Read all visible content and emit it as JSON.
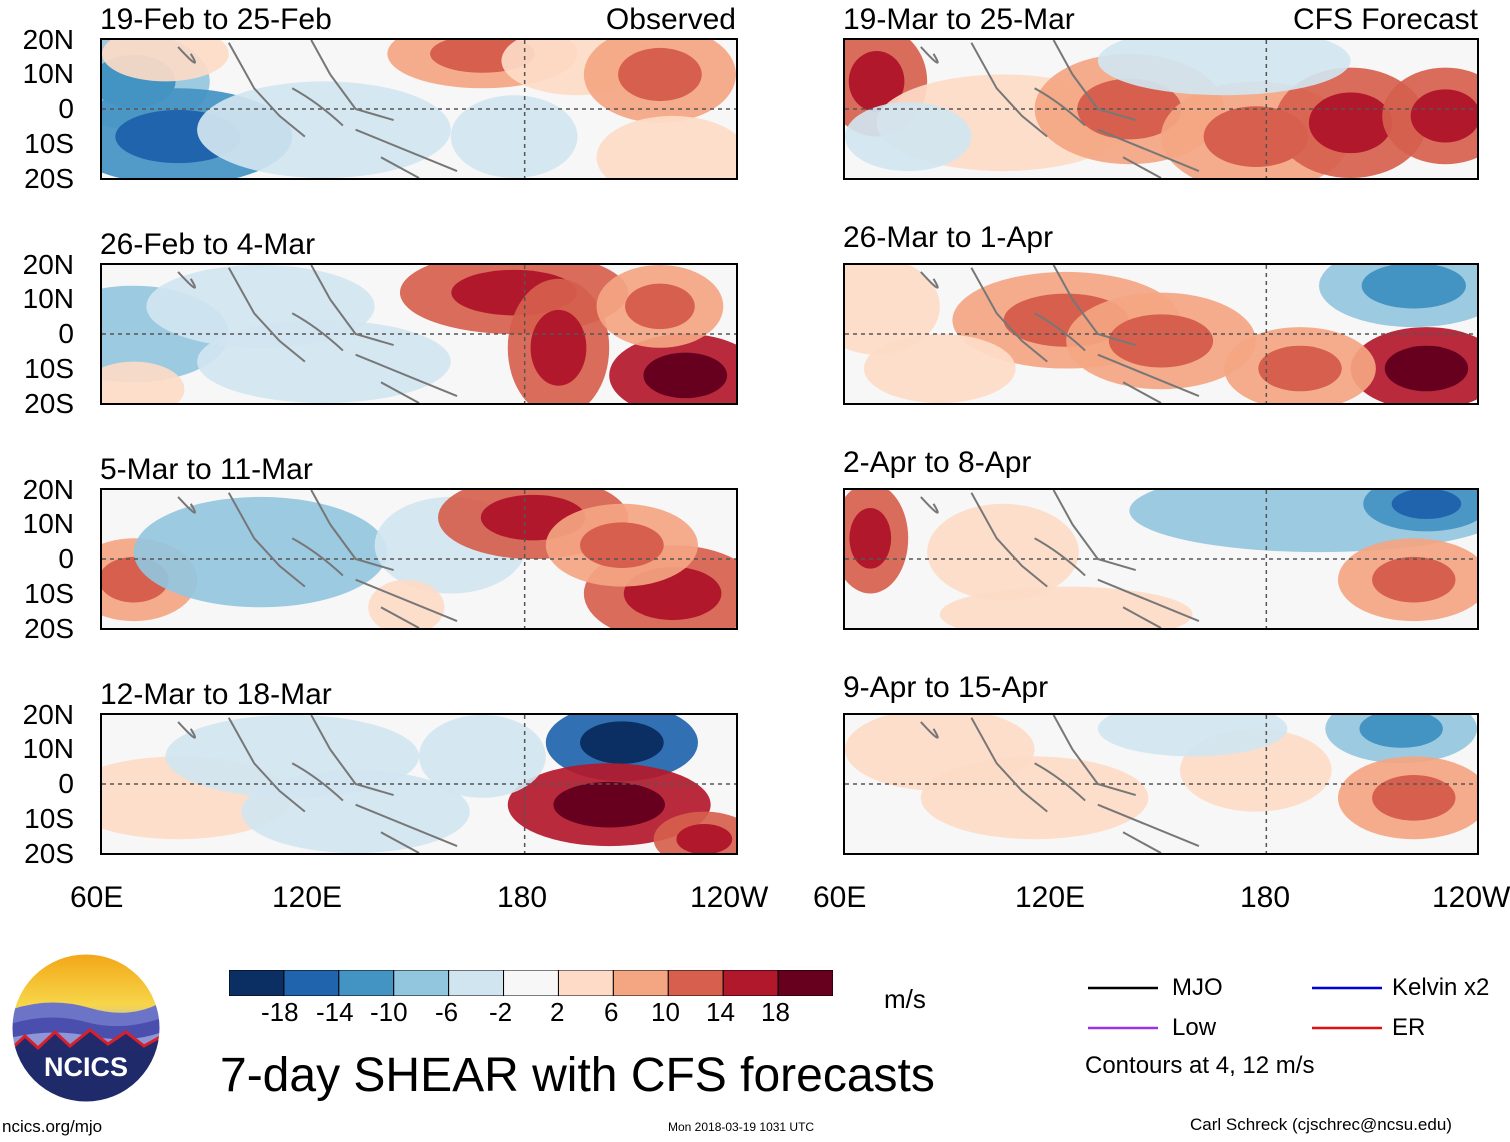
{
  "chart_data": {
    "type": "heatmap",
    "title": "7-day SHEAR with CFS forecasts",
    "units": "m/s",
    "contour_note": "Contours at 4, 12 m/s",
    "lat_ticks": [
      "20N",
      "10N",
      "0",
      "10S",
      "20S"
    ],
    "lon_ticks": [
      "60E",
      "120E",
      "180",
      "120W"
    ],
    "lat_range": [
      -20,
      20
    ],
    "lon_range": [
      60,
      240
    ],
    "colorbar": {
      "ticks": [
        -18,
        -14,
        -10,
        -6,
        -2,
        2,
        6,
        10,
        14,
        18
      ],
      "colors": [
        "#0b2f63",
        "#1f64ad",
        "#4393c3",
        "#92c5de",
        "#d1e5f0",
        "#f7f7f7",
        "#fddbc7",
        "#f4a582",
        "#d6604d",
        "#b2182b",
        "#67001f"
      ]
    },
    "legend": [
      {
        "label": "MJO",
        "color": "#000000"
      },
      {
        "label": "Kelvin x2",
        "color": "#0000dd"
      },
      {
        "label": "Low",
        "color": "#9a32e6"
      },
      {
        "label": "ER",
        "color": "#e01010"
      }
    ],
    "observed_label": "Observed",
    "forecast_label": "CFS Forecast",
    "panels": [
      {
        "title": "19-Feb to 25-Feb",
        "group": "observed",
        "blobs": [
          [
            0.05,
            0.3,
            0.12,
            0.35,
            -8
          ],
          [
            0.12,
            0.7,
            0.18,
            0.35,
            -10
          ],
          [
            0.35,
            0.65,
            0.2,
            0.35,
            -4
          ],
          [
            0.6,
            0.1,
            0.15,
            0.25,
            8
          ],
          [
            0.75,
            0.15,
            0.12,
            0.25,
            6
          ],
          [
            0.88,
            0.25,
            0.12,
            0.35,
            8
          ],
          [
            0.1,
            0.1,
            0.1,
            0.2,
            6
          ],
          [
            0.65,
            0.7,
            0.1,
            0.3,
            -4
          ],
          [
            0.9,
            0.85,
            0.12,
            0.3,
            4
          ]
        ]
      },
      {
        "title": "26-Feb to 4-Mar",
        "group": "observed",
        "blobs": [
          [
            0.05,
            0.5,
            0.15,
            0.35,
            -6
          ],
          [
            0.25,
            0.3,
            0.18,
            0.3,
            -5
          ],
          [
            0.35,
            0.7,
            0.2,
            0.3,
            -4
          ],
          [
            0.65,
            0.2,
            0.18,
            0.3,
            12
          ],
          [
            0.72,
            0.6,
            0.08,
            0.5,
            12
          ],
          [
            0.92,
            0.8,
            0.12,
            0.3,
            16
          ],
          [
            0.88,
            0.3,
            0.1,
            0.3,
            8
          ],
          [
            0.05,
            0.9,
            0.08,
            0.2,
            6
          ]
        ]
      },
      {
        "title": "5-Mar to 11-Mar",
        "group": "observed",
        "blobs": [
          [
            0.05,
            0.65,
            0.1,
            0.3,
            8
          ],
          [
            0.25,
            0.45,
            0.2,
            0.4,
            -6
          ],
          [
            0.55,
            0.4,
            0.12,
            0.35,
            -4
          ],
          [
            0.68,
            0.2,
            0.15,
            0.3,
            14
          ],
          [
            0.9,
            0.75,
            0.14,
            0.35,
            14
          ],
          [
            0.82,
            0.4,
            0.12,
            0.3,
            8
          ],
          [
            0.48,
            0.85,
            0.06,
            0.2,
            6
          ]
        ]
      },
      {
        "title": "12-Mar to 18-Mar",
        "group": "observed",
        "blobs": [
          [
            0.12,
            0.6,
            0.18,
            0.3,
            4
          ],
          [
            0.3,
            0.3,
            0.2,
            0.3,
            -4
          ],
          [
            0.4,
            0.7,
            0.18,
            0.3,
            -3
          ],
          [
            0.82,
            0.2,
            0.12,
            0.28,
            -16
          ],
          [
            0.8,
            0.65,
            0.16,
            0.3,
            16
          ],
          [
            0.95,
            0.9,
            0.08,
            0.2,
            14
          ],
          [
            0.6,
            0.3,
            0.1,
            0.3,
            -4
          ]
        ]
      },
      {
        "title": "19-Mar to 25-Mar",
        "group": "forecast",
        "blobs": [
          [
            0.05,
            0.3,
            0.08,
            0.4,
            12
          ],
          [
            0.25,
            0.6,
            0.2,
            0.35,
            6
          ],
          [
            0.45,
            0.5,
            0.15,
            0.4,
            8
          ],
          [
            0.65,
            0.7,
            0.15,
            0.4,
            10
          ],
          [
            0.8,
            0.6,
            0.12,
            0.4,
            12
          ],
          [
            0.95,
            0.55,
            0.1,
            0.35,
            14
          ],
          [
            0.6,
            0.15,
            0.2,
            0.25,
            -4
          ],
          [
            0.1,
            0.7,
            0.1,
            0.25,
            -4
          ]
        ]
      },
      {
        "title": "26-Mar to 1-Apr",
        "group": "forecast",
        "blobs": [
          [
            0.05,
            0.3,
            0.1,
            0.35,
            6
          ],
          [
            0.35,
            0.4,
            0.18,
            0.35,
            10
          ],
          [
            0.5,
            0.55,
            0.15,
            0.35,
            8
          ],
          [
            0.9,
            0.15,
            0.15,
            0.3,
            -8
          ],
          [
            0.92,
            0.75,
            0.12,
            0.3,
            16
          ],
          [
            0.72,
            0.75,
            0.12,
            0.3,
            8
          ],
          [
            0.15,
            0.75,
            0.12,
            0.25,
            4
          ]
        ]
      },
      {
        "title": "2-Apr to 8-Apr",
        "group": "forecast",
        "blobs": [
          [
            0.04,
            0.35,
            0.06,
            0.4,
            12
          ],
          [
            0.25,
            0.45,
            0.12,
            0.35,
            4
          ],
          [
            0.75,
            0.15,
            0.3,
            0.3,
            -6
          ],
          [
            0.92,
            0.1,
            0.1,
            0.2,
            -10
          ],
          [
            0.9,
            0.65,
            0.12,
            0.3,
            8
          ],
          [
            0.35,
            0.9,
            0.2,
            0.2,
            4
          ]
        ]
      },
      {
        "title": "9-Apr to 15-Apr",
        "group": "forecast",
        "blobs": [
          [
            0.15,
            0.25,
            0.15,
            0.3,
            4
          ],
          [
            0.3,
            0.6,
            0.18,
            0.3,
            3
          ],
          [
            0.88,
            0.1,
            0.12,
            0.25,
            -8
          ],
          [
            0.9,
            0.6,
            0.12,
            0.3,
            10
          ],
          [
            0.65,
            0.4,
            0.12,
            0.3,
            4
          ],
          [
            0.55,
            0.1,
            0.15,
            0.2,
            -4
          ]
        ]
      }
    ]
  },
  "footer": {
    "logo_text": "NCICS",
    "url": "ncics.org/mjo",
    "timestamp": "Mon 2018-03-19 1031 UTC",
    "author": "Carl Schreck (cjschrec@ncsu.edu)"
  }
}
